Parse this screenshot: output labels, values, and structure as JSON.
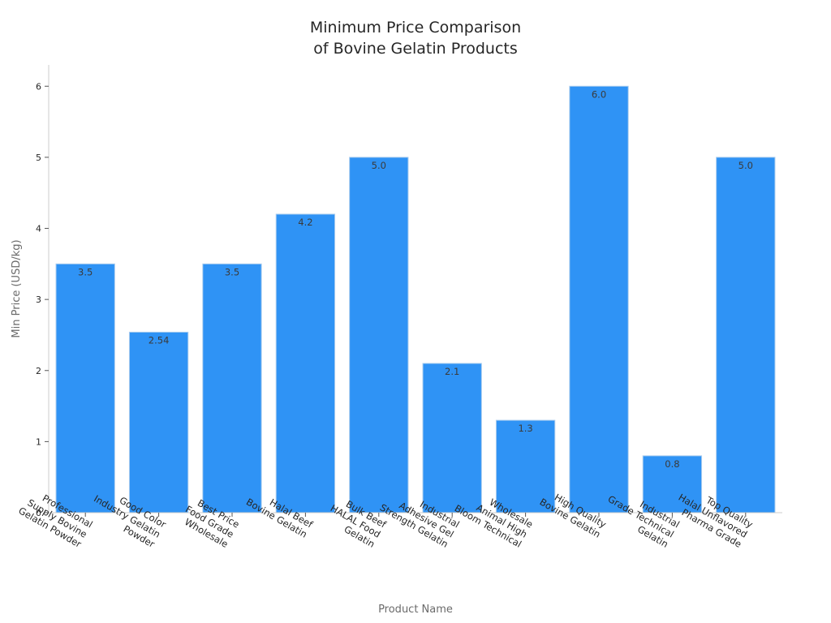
{
  "chart_data": {
    "type": "bar",
    "title": "Minimum Price Comparison\nof Bovine Gelatin Products",
    "xlabel": "Product Name",
    "ylabel": "Min Price (USD/kg)",
    "ylim": [
      0,
      6.3
    ],
    "yticks": [
      0,
      1,
      2,
      3,
      4,
      5,
      6
    ],
    "grid": false,
    "bar_color": "#2f93f5",
    "bar_edge_color": "#aaccee",
    "categories": [
      "Professional\nSupply Bovine\nGelatin Powder",
      "Good Color\nIndustry Gelatin\nPowder",
      "Best Price\nFood Grade\nWholesale",
      "Halal Beef\nBovine Gelatin",
      "Bulk Beef\nHALAL Food\nGelatin",
      "Industrial\nAdhesive Gel\nStrength Gelatin",
      "Wholesale\nAnimal High\nBloom Technical",
      "High Quality\nBovine Gelatin",
      "Industrial\nGrade Technical\nGelatin",
      "Top Quality\nHalal Unflavored\nPharma Grade"
    ],
    "values": [
      3.5,
      2.54,
      3.5,
      4.2,
      5.0,
      2.1,
      1.3,
      6.0,
      0.8,
      5.0
    ],
    "data_labels": [
      "3.5",
      "2.54",
      "3.5",
      "4.2",
      "5.0",
      "2.1",
      "1.3",
      "6.0",
      "0.8",
      "5.0"
    ]
  }
}
